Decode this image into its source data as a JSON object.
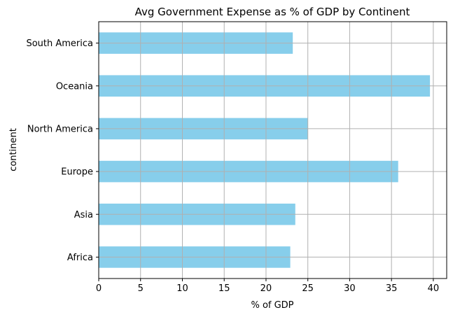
{
  "chart_data": {
    "type": "bar",
    "orientation": "horizontal",
    "title": "Avg Government Expense as % of GDP by Continent",
    "xlabel": "% of GDP",
    "ylabel": "continent",
    "categories": [
      "Africa",
      "Asia",
      "Europe",
      "North America",
      "Oceania",
      "South America"
    ],
    "values": [
      22.9,
      23.5,
      35.8,
      25.0,
      39.6,
      23.2
    ],
    "xlim": [
      0,
      41.6
    ],
    "xticks": [
      0,
      5,
      10,
      15,
      20,
      25,
      30,
      35,
      40
    ],
    "grid": true,
    "bar_color": "#87CEEB",
    "grid_color": "#b0b0b0"
  }
}
